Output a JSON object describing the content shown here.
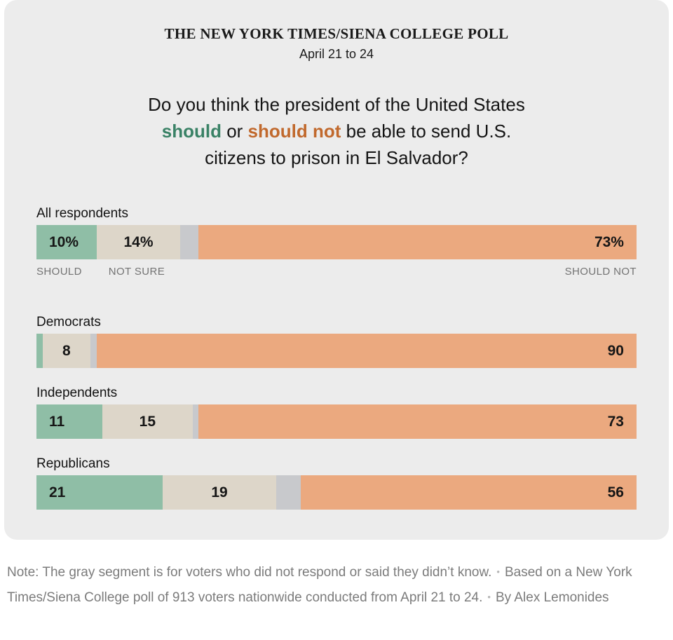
{
  "header": {
    "kicker": "THE NEW YORK TIMES/SIENA COLLEGE POLL",
    "date": "April 21 to 24"
  },
  "question": {
    "part1": "Do you think the president of the United States ",
    "should_word": "should",
    "part2": " or ",
    "should_not_word": "should not",
    "part3": " be able to send U.S. citizens to prison in El Salvador?"
  },
  "colors": {
    "card_background": "#ececec",
    "segment_should": "#8fbea6",
    "segment_not_sure": "#ddd6c9",
    "segment_no_answer": "#c8c9cc",
    "segment_should_not": "#eba97f",
    "question_should_text": "#3a8266",
    "question_should_not_text": "#c1692d"
  },
  "chart_data": {
    "type": "bar",
    "subtype": "horizontal-stacked",
    "title": "Do you think the president of the United States should or should not be able to send U.S. citizens to prison in El Salvador?",
    "xlim": [
      0,
      100
    ],
    "grid": false,
    "categories": [
      "All respondents",
      "Democrats",
      "Independents",
      "Republicans"
    ],
    "series": [
      {
        "name": "Should",
        "key": "should",
        "color": "#8fbea6",
        "values": [
          10,
          1,
          11,
          21
        ],
        "display_labels": [
          "10%",
          "",
          "11",
          "21"
        ]
      },
      {
        "name": "Not sure",
        "key": "not_sure",
        "color": "#ddd6c9",
        "values": [
          14,
          8,
          15,
          19
        ],
        "display_labels": [
          "14%",
          "8",
          "15",
          "19"
        ]
      },
      {
        "name": "Did not respond or didn't know",
        "key": "no_answer",
        "color": "#c8c9cc",
        "values": [
          3,
          1,
          1,
          4
        ],
        "display_labels": [
          "",
          "",
          "",
          ""
        ]
      },
      {
        "name": "Should not",
        "key": "should_not",
        "color": "#eba97f",
        "values": [
          73,
          90,
          73,
          56
        ],
        "display_labels": [
          "73%",
          "90",
          "73",
          "56"
        ]
      }
    ],
    "axis_labels": [
      "SHOULD",
      "NOT SURE",
      "SHOULD NOT"
    ]
  },
  "footer": {
    "separator": "•",
    "notes": [
      "Note: The gray segment is for voters who did not respond or said they didn’t know.",
      "Based on a New York Times/Siena College poll of 913 voters nationwide conducted from April 21 to 24.",
      "By Alex Lemonides"
    ]
  }
}
